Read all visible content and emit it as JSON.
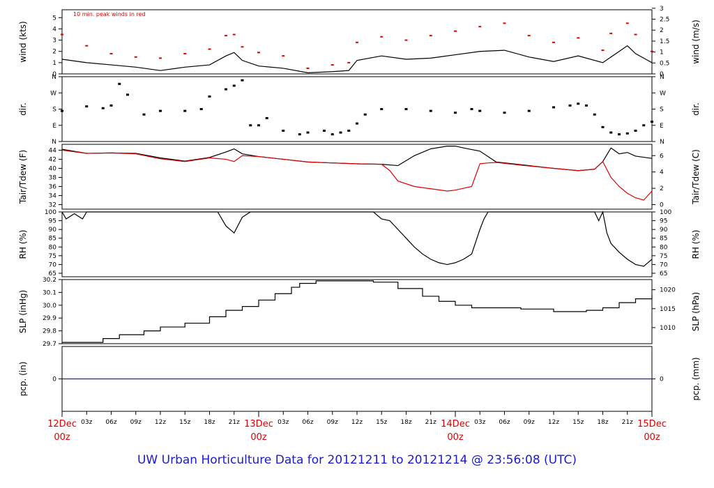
{
  "footer": {
    "title": "UW Urban Horticulture Data for 20121211  to  20121214 @ 23:56:08  (UTC)"
  },
  "annotation": "10 min. peak winds in red",
  "colors": {
    "main_line": "#000000",
    "peak_or_dew": "#e00000",
    "precip_line": "#1a1ad6",
    "date_label": "#e00000",
    "title": "#1a1ad6",
    "frame": "#000000",
    "background": "#ffffff"
  },
  "x_axis": {
    "unit": "hours since 12Dec 00z",
    "range": [
      0,
      72
    ],
    "hour_ticks": [
      {
        "h": 3,
        "label": "03z"
      },
      {
        "h": 6,
        "label": "06z"
      },
      {
        "h": 9,
        "label": "09z"
      },
      {
        "h": 12,
        "label": "12z"
      },
      {
        "h": 15,
        "label": "15z"
      },
      {
        "h": 18,
        "label": "18z"
      },
      {
        "h": 21,
        "label": "21z"
      },
      {
        "h": 27,
        "label": "03z"
      },
      {
        "h": 30,
        "label": "06z"
      },
      {
        "h": 33,
        "label": "09z"
      },
      {
        "h": 36,
        "label": "12z"
      },
      {
        "h": 39,
        "label": "15z"
      },
      {
        "h": 42,
        "label": "18z"
      },
      {
        "h": 45,
        "label": "21z"
      },
      {
        "h": 51,
        "label": "03z"
      },
      {
        "h": 54,
        "label": "06z"
      },
      {
        "h": 57,
        "label": "09z"
      },
      {
        "h": 60,
        "label": "12z"
      },
      {
        "h": 63,
        "label": "15z"
      },
      {
        "h": 66,
        "label": "18z"
      },
      {
        "h": 69,
        "label": "21z"
      }
    ],
    "date_ticks": [
      {
        "h": 0,
        "date": "12Dec",
        "time": "00z"
      },
      {
        "h": 24,
        "date": "13Dec",
        "time": "00z"
      },
      {
        "h": 48,
        "date": "14Dec",
        "time": "00z"
      },
      {
        "h": 72,
        "date": "15Dec",
        "time": "00z"
      }
    ]
  },
  "chart_data": [
    {
      "type": "line",
      "id": "wind",
      "ylabel_left": "wind (kts)",
      "ylabel_right": "wind (m/s)",
      "ylim": [
        0,
        5.7
      ],
      "left_ticks": [
        0,
        1,
        2,
        3,
        4,
        5
      ],
      "right_ticks": [
        {
          "v": 0,
          "label": "0"
        },
        {
          "v": 0.5,
          "label": "0.5"
        },
        {
          "v": 1,
          "label": "1"
        },
        {
          "v": 1.5,
          "label": "1.5"
        },
        {
          "v": 2,
          "label": "2"
        },
        {
          "v": 2.5,
          "label": "2.5"
        },
        {
          "v": 3,
          "label": "3"
        }
      ],
      "right_scale": 0.5144,
      "series": [
        {
          "role": "mean wind",
          "color": "#000000",
          "x": [
            0,
            3,
            6,
            9,
            12,
            15,
            18,
            20,
            21,
            22,
            24,
            27,
            30,
            33,
            35,
            36,
            39,
            42,
            45,
            48,
            51,
            54,
            57,
            60,
            63,
            66,
            67,
            69,
            70,
            72
          ],
          "y": [
            1.3,
            1.0,
            0.8,
            0.6,
            0.3,
            0.6,
            0.8,
            1.6,
            1.9,
            1.2,
            0.7,
            0.5,
            0.1,
            0.2,
            0.3,
            1.2,
            1.6,
            1.3,
            1.4,
            1.7,
            2.0,
            2.1,
            1.5,
            1.1,
            1.6,
            1.0,
            1.5,
            2.5,
            1.8,
            1.0
          ]
        },
        {
          "role": "10 min peak",
          "color": "#e00000",
          "x": [
            0,
            3,
            6,
            9,
            12,
            15,
            18,
            20,
            21,
            22,
            24,
            27,
            30,
            33,
            35,
            36,
            39,
            42,
            45,
            48,
            51,
            54,
            57,
            60,
            63,
            66,
            67,
            69,
            70,
            72
          ],
          "y": [
            3.5,
            2.5,
            1.8,
            1.5,
            1.4,
            1.8,
            2.2,
            3.4,
            3.5,
            2.4,
            1.9,
            1.6,
            0.5,
            0.8,
            1.0,
            2.8,
            3.3,
            3.0,
            3.4,
            3.8,
            4.2,
            4.5,
            3.4,
            2.8,
            3.2,
            2.1,
            3.6,
            4.5,
            3.5,
            2.0
          ]
        }
      ]
    },
    {
      "type": "scatter",
      "id": "dir",
      "ylabel_left": "dir.",
      "ylabel_right": "dir.",
      "ylim": [
        0,
        360
      ],
      "ticks": [
        {
          "v": 0,
          "label": "N"
        },
        {
          "v": 90,
          "label": "E"
        },
        {
          "v": 180,
          "label": "S"
        },
        {
          "v": 270,
          "label": "W"
        },
        {
          "v": 360,
          "label": "N"
        }
      ],
      "series": [
        {
          "role": "wind direction",
          "color": "#000000",
          "x": [
            0,
            3,
            5,
            6,
            7,
            8,
            10,
            12,
            15,
            17,
            18,
            20,
            21,
            22,
            23,
            24,
            25,
            27,
            29,
            30,
            32,
            33,
            34,
            35,
            36,
            37,
            39,
            42,
            45,
            48,
            50,
            51,
            54,
            57,
            60,
            62,
            63,
            64,
            65,
            66,
            67,
            68,
            69,
            70,
            71,
            72
          ],
          "y": [
            170,
            195,
            185,
            200,
            320,
            260,
            150,
            170,
            170,
            180,
            250,
            290,
            310,
            340,
            90,
            90,
            130,
            60,
            40,
            50,
            60,
            40,
            50,
            60,
            100,
            150,
            180,
            180,
            170,
            160,
            180,
            170,
            160,
            170,
            190,
            200,
            210,
            200,
            150,
            80,
            50,
            40,
            45,
            60,
            90,
            110
          ]
        }
      ]
    },
    {
      "type": "line",
      "id": "temp",
      "ylabel_left": "Tair/Tdew (F)",
      "ylabel_right": "Tair/Tdew (C)",
      "ylim": [
        31,
        45.3
      ],
      "left_ticks": [
        32,
        34,
        36,
        38,
        40,
        42,
        44
      ],
      "right_ticks": [
        {
          "v": 0,
          "label": "0"
        },
        {
          "v": 2,
          "label": "2"
        },
        {
          "v": 4,
          "label": "4"
        },
        {
          "v": 6,
          "label": "6"
        }
      ],
      "right_is_celsius": true,
      "series": [
        {
          "role": "air temperature",
          "color": "#000000",
          "x": [
            0,
            3,
            6,
            9,
            12,
            15,
            18,
            20,
            21,
            22,
            24,
            27,
            30,
            33,
            36,
            39,
            41,
            43,
            45,
            47,
            48,
            49,
            51,
            53,
            56,
            60,
            63,
            65,
            66,
            67,
            68,
            69,
            70,
            72
          ],
          "y": [
            44.2,
            43.3,
            43.4,
            43.3,
            42.3,
            41.6,
            42.4,
            43.6,
            44.3,
            43.2,
            42.6,
            42.0,
            41.4,
            41.2,
            41.0,
            40.9,
            40.6,
            42.8,
            44.3,
            44.9,
            44.9,
            44.5,
            43.8,
            41.4,
            40.8,
            40.0,
            39.5,
            39.8,
            41.5,
            44.5,
            43.2,
            43.5,
            42.7,
            42.2
          ]
        },
        {
          "role": "dew point",
          "color": "#e00000",
          "x": [
            0,
            3,
            6,
            9,
            12,
            15,
            18,
            20,
            21,
            22,
            24,
            27,
            30,
            33,
            36,
            39,
            40,
            41,
            43,
            45,
            47,
            48,
            49,
            50,
            51,
            52,
            53,
            56,
            60,
            63,
            65,
            66,
            67,
            68,
            69,
            70,
            71,
            72
          ],
          "y": [
            44.0,
            43.3,
            43.4,
            43.2,
            42.1,
            41.5,
            42.3,
            42.0,
            41.5,
            42.8,
            42.6,
            42.0,
            41.4,
            41.2,
            41.0,
            40.9,
            39.5,
            37.2,
            36.0,
            35.5,
            35.0,
            35.2,
            35.6,
            36.0,
            41.0,
            41.2,
            41.3,
            40.7,
            40.0,
            39.5,
            39.8,
            41.5,
            38.0,
            36.0,
            34.5,
            33.5,
            33.0,
            35.0
          ]
        }
      ]
    },
    {
      "type": "line",
      "id": "rh",
      "ylabel_left": "RH (%)",
      "ylabel_right": "RH (%)",
      "ylim": [
        63,
        100
      ],
      "left_ticks": [
        65,
        70,
        75,
        80,
        85,
        90,
        95,
        100
      ],
      "right_ticks": [
        {
          "v": 65,
          "label": "65"
        },
        {
          "v": 70,
          "label": "70"
        },
        {
          "v": 75,
          "label": "75"
        },
        {
          "v": 80,
          "label": "80"
        },
        {
          "v": 85,
          "label": "85"
        },
        {
          "v": 90,
          "label": "90"
        },
        {
          "v": 95,
          "label": "95"
        },
        {
          "v": 100,
          "label": "100"
        }
      ],
      "series": [
        {
          "role": "relative humidity",
          "color": "#000000",
          "x": [
            0,
            0.5,
            1.5,
            2.5,
            3,
            12,
            19,
            20,
            21,
            22,
            23,
            24,
            38,
            39,
            40,
            41,
            42,
            43,
            44,
            45,
            46,
            47,
            48,
            49,
            50,
            51,
            51.5,
            52,
            65,
            65.5,
            66,
            66.5,
            67,
            68,
            69,
            70,
            71,
            72
          ],
          "y": [
            100,
            96,
            99,
            96,
            100,
            100,
            100,
            92,
            88,
            97,
            100,
            100,
            100,
            96,
            95,
            90,
            85,
            80,
            76,
            73,
            71,
            70,
            71,
            73,
            76,
            90,
            96,
            100,
            100,
            95,
            100,
            88,
            82,
            77,
            73,
            70,
            69,
            73
          ]
        }
      ]
    },
    {
      "type": "line",
      "id": "slp",
      "ylabel_left": "SLP (inHg)",
      "ylabel_right": "SLP (hPa)",
      "ylim": [
        29.7,
        30.2
      ],
      "left_ticks": [
        29.7,
        29.8,
        29.9,
        30.0,
        30.1,
        30.2
      ],
      "right_ticks": [
        {
          "v": 1010,
          "label": "1010"
        },
        {
          "v": 1015,
          "label": "1015"
        },
        {
          "v": 1020,
          "label": "1020"
        }
      ],
      "right_is_hpa": true,
      "series": [
        {
          "role": "sea level pressure",
          "color": "#000000",
          "x": [
            0,
            5,
            7,
            10,
            12,
            15,
            18,
            20,
            22,
            24,
            26,
            28,
            29,
            31,
            36,
            38,
            41,
            44,
            46,
            48,
            50,
            52,
            56,
            60,
            62,
            64,
            66,
            68,
            70,
            72
          ],
          "y": [
            29.71,
            29.74,
            29.77,
            29.8,
            29.83,
            29.86,
            29.91,
            29.96,
            29.99,
            30.04,
            30.09,
            30.14,
            30.17,
            30.19,
            30.19,
            30.18,
            30.13,
            30.07,
            30.03,
            30.0,
            29.98,
            29.98,
            29.97,
            29.95,
            29.95,
            29.96,
            29.98,
            30.02,
            30.05,
            30.08
          ]
        }
      ]
    },
    {
      "type": "line",
      "id": "pcp",
      "ylabel_left": "pcp. (in)",
      "ylabel_right": "pcp. (mm)",
      "ylim": [
        -1,
        1
      ],
      "left_ticks": [
        0
      ],
      "right_ticks": [
        {
          "v": 0,
          "label": "0"
        }
      ],
      "series": [
        {
          "role": "precipitation",
          "color": "#1a1ad6",
          "x": [
            0,
            72
          ],
          "y": [
            0,
            0
          ]
        }
      ]
    }
  ]
}
